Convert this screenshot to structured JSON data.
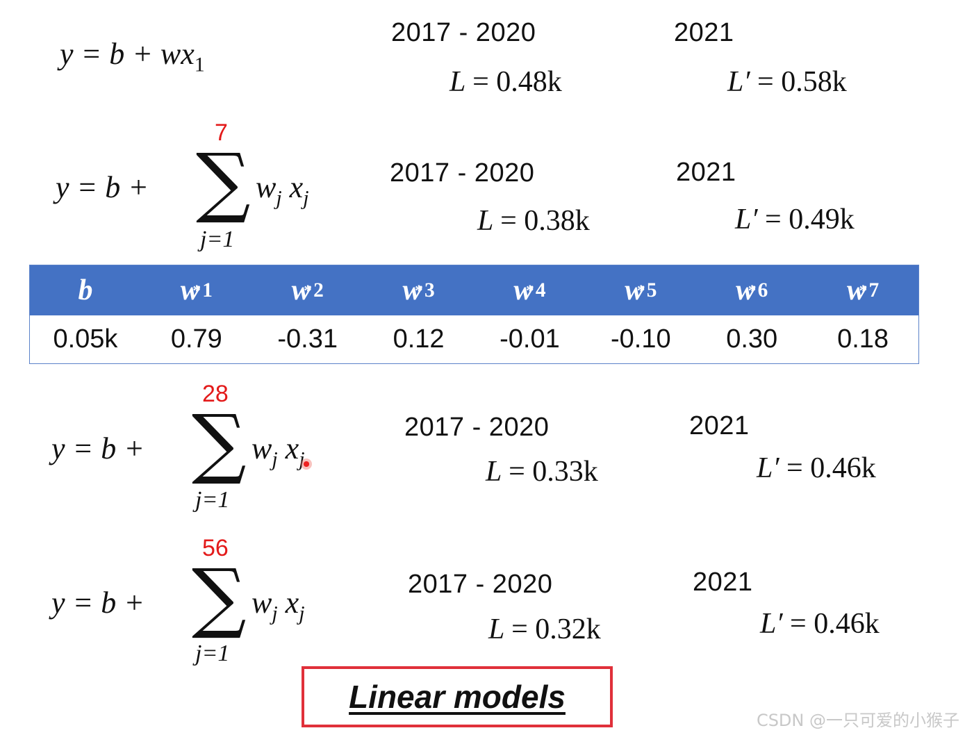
{
  "models": [
    {
      "lhs": "y = b + w",
      "var": "x",
      "sub": "1",
      "train_period": "2017 - 2020",
      "train_loss_label": "L",
      "train_loss": "= 0.48k",
      "test_year": "2021",
      "test_loss_label": "L′",
      "test_loss": "= 0.58k"
    },
    {
      "upper_limit": "7",
      "lower_limit": "j=1",
      "train_period": "2017 - 2020",
      "train_loss_label": "L",
      "train_loss": "= 0.38k",
      "test_year": "2021",
      "test_loss_label": "L′",
      "test_loss": "= 0.49k"
    },
    {
      "upper_limit": "28",
      "lower_limit": "j=1",
      "train_period": "2017 - 2020",
      "train_loss_label": "L",
      "train_loss": "= 0.33k",
      "test_year": "2021",
      "test_loss_label": "L′",
      "test_loss": "= 0.46k"
    },
    {
      "upper_limit": "56",
      "lower_limit": "j=1",
      "train_period": "2017 - 2020",
      "train_loss_label": "L",
      "train_loss": "= 0.32k",
      "test_year": "2021",
      "test_loss_label": "L′",
      "test_loss": "= 0.46k"
    }
  ],
  "sum_formula": {
    "lhs": "y = b +",
    "w": "w",
    "x": "x",
    "index": "j"
  },
  "weights_table": {
    "headers": [
      {
        "base": "b",
        "sup": "",
        "sub": ""
      },
      {
        "base": "w",
        "sup": "*",
        "sub": "1"
      },
      {
        "base": "w",
        "sup": "*",
        "sub": "2"
      },
      {
        "base": "w",
        "sup": "*",
        "sub": "3"
      },
      {
        "base": "w",
        "sup": "*",
        "sub": "4"
      },
      {
        "base": "w",
        "sup": "*",
        "sub": "5"
      },
      {
        "base": "w",
        "sup": "*",
        "sub": "6"
      },
      {
        "base": "w",
        "sup": "*",
        "sub": "7"
      }
    ],
    "values": [
      "0.05k",
      "0.79",
      "-0.31",
      "0.12",
      "-0.01",
      "-0.10",
      "0.30",
      "0.18"
    ]
  },
  "caption": "Linear models",
  "watermark": "CSDN @一只可爱的小猴子",
  "colors": {
    "table_header": "#4472c4",
    "limit_red": "#e31a1a",
    "caption_border": "#e0303a"
  }
}
